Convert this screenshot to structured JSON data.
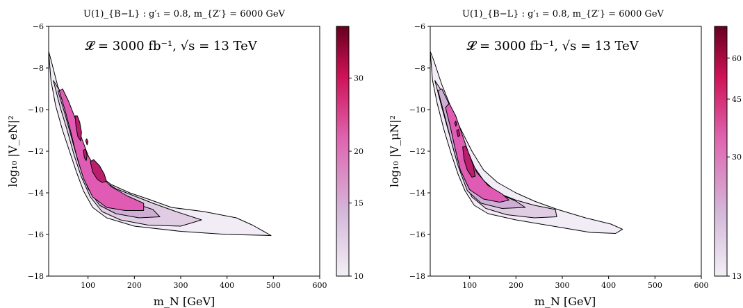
{
  "chart_data": [
    {
      "type": "contour",
      "title": "U(1)_{B−L} : g′₁ = 0.8, m_{Z′} = 6000 GeV",
      "annotation": "𝓛 = 3000 fb⁻¹, √s = 13 TeV",
      "xlabel": "m_N [GeV]",
      "ylabel": "log₁₀ |V_eN|²",
      "xlim": [
        15,
        600
      ],
      "ylim": [
        -18,
        -6
      ],
      "x_ticks": [
        "100",
        "200",
        "300",
        "400",
        "500",
        "600"
      ],
      "y_ticks": [
        "−18",
        "−16",
        "−14",
        "−12",
        "−10",
        "−8",
        "−6"
      ],
      "colorbar": {
        "scale": "log",
        "range": [
          10,
          40
        ],
        "ticks": [
          "10",
          "15",
          "20",
          "30"
        ],
        "colors": [
          "#f3eff6",
          "#d4b9da",
          "#df65b0",
          "#ce1256",
          "#67001f"
        ]
      },
      "contour_levels": [
        {
          "level": 10,
          "fill": "#f1ecf5",
          "points": [
            [
              15,
              -7.2
            ],
            [
              20,
              -8.6
            ],
            [
              30,
              -9.8
            ],
            [
              45,
              -11.0
            ],
            [
              60,
              -12.0
            ],
            [
              75,
              -13.0
            ],
            [
              90,
              -13.9
            ],
            [
              110,
              -14.7
            ],
            [
              140,
              -15.2
            ],
            [
              200,
              -15.6
            ],
            [
              300,
              -15.85
            ],
            [
              400,
              -16.0
            ],
            [
              495,
              -16.05
            ],
            [
              455,
              -15.55
            ],
            [
              420,
              -15.2
            ],
            [
              350,
              -14.9
            ],
            [
              280,
              -14.7
            ],
            [
              230,
              -14.3
            ],
            [
              190,
              -14.0
            ],
            [
              150,
              -13.6
            ],
            [
              120,
              -13.1
            ],
            [
              95,
              -12.2
            ],
            [
              75,
              -11.1
            ],
            [
              55,
              -9.9
            ],
            [
              35,
              -8.9
            ],
            [
              20,
              -7.6
            ]
          ]
        },
        {
          "level": 13,
          "fill": "#e0cde4",
          "points": [
            [
              25,
              -8.6
            ],
            [
              40,
              -9.9
            ],
            [
              55,
              -11.0
            ],
            [
              70,
              -12.2
            ],
            [
              85,
              -13.2
            ],
            [
              105,
              -14.2
            ],
            [
              130,
              -14.9
            ],
            [
              170,
              -15.3
            ],
            [
              230,
              -15.55
            ],
            [
              300,
              -15.6
            ],
            [
              345,
              -15.3
            ],
            [
              290,
              -14.9
            ],
            [
              240,
              -14.5
            ],
            [
              200,
              -14.15
            ],
            [
              160,
              -13.8
            ],
            [
              125,
              -13.3
            ],
            [
              100,
              -12.5
            ],
            [
              80,
              -11.5
            ],
            [
              65,
              -10.5
            ],
            [
              45,
              -9.3
            ]
          ]
        },
        {
          "level": 16,
          "fill": "#cfaed6",
          "points": [
            [
              35,
              -9.1
            ],
            [
              50,
              -10.2
            ],
            [
              65,
              -11.4
            ],
            [
              80,
              -12.6
            ],
            [
              100,
              -13.8
            ],
            [
              125,
              -14.6
            ],
            [
              160,
              -15.0
            ],
            [
              210,
              -15.2
            ],
            [
              255,
              -15.15
            ],
            [
              240,
              -14.8
            ],
            [
              200,
              -14.5
            ],
            [
              160,
              -14.1
            ],
            [
              125,
              -13.6
            ],
            [
              100,
              -12.8
            ],
            [
              85,
              -11.9
            ],
            [
              70,
              -11.0
            ],
            [
              55,
              -9.9
            ],
            [
              42,
              -9.1
            ]
          ]
        },
        {
          "level": 20,
          "fill": "#df5bb4",
          "points": [
            [
              38,
              -9.1
            ],
            [
              50,
              -10.0
            ],
            [
              62,
              -11.0
            ],
            [
              75,
              -12.2
            ],
            [
              90,
              -13.3
            ],
            [
              110,
              -14.2
            ],
            [
              140,
              -14.7
            ],
            [
              180,
              -14.85
            ],
            [
              220,
              -14.85
            ],
            [
              220,
              -14.5
            ],
            [
              185,
              -14.15
            ],
            [
              150,
              -13.7
            ],
            [
              120,
              -13.0
            ],
            [
              100,
              -12.2
            ],
            [
              85,
              -11.3
            ],
            [
              72,
              -10.4
            ],
            [
              58,
              -9.6
            ],
            [
              45,
              -9.0
            ]
          ]
        },
        {
          "level": 30,
          "fill": "#b91f6c",
          "points": [
            [
              105,
              -12.5
            ],
            [
              110,
              -13.0
            ],
            [
              120,
              -13.35
            ],
            [
              130,
              -13.5
            ],
            [
              140,
              -13.45
            ],
            [
              135,
              -13.1
            ],
            [
              125,
              -12.7
            ],
            [
              112,
              -12.4
            ]
          ]
        },
        {
          "level": 30,
          "fill": "#b91f6c",
          "points": [
            [
              72,
              -10.3
            ],
            [
              74,
              -10.8
            ],
            [
              78,
              -11.3
            ],
            [
              84,
              -11.5
            ],
            [
              86,
              -11.1
            ],
            [
              82,
              -10.6
            ],
            [
              77,
              -10.3
            ]
          ]
        },
        {
          "level": 30,
          "fill": "#b91f6c",
          "points": [
            [
              90,
              -11.95
            ],
            [
              92,
              -12.3
            ],
            [
              96,
              -12.45
            ],
            [
              98,
              -12.2
            ],
            [
              95,
              -11.9
            ]
          ]
        },
        {
          "level": 30,
          "fill": "#b91f6c",
          "points": [
            [
              95,
              -11.5
            ],
            [
              98,
              -11.7
            ],
            [
              100,
              -11.55
            ],
            [
              97,
              -11.4
            ]
          ]
        }
      ]
    },
    {
      "type": "contour",
      "title": "U(1)_{B−L} : g′₁ = 0.8, m_{Z′} = 6000 GeV",
      "annotation": "𝓛 = 3000 fb⁻¹, √s = 13 TeV",
      "xlabel": "m_N [GeV]",
      "ylabel": "log₁₀ |V_μN|²",
      "xlim": [
        15,
        600
      ],
      "ylim": [
        -18,
        -6
      ],
      "x_ticks": [
        "100",
        "200",
        "300",
        "400",
        "500",
        "600"
      ],
      "y_ticks": [
        "−18",
        "−16",
        "−14",
        "−12",
        "−10",
        "−8",
        "−6"
      ],
      "colorbar": {
        "scale": "log",
        "range": [
          13,
          75
        ],
        "ticks": [
          "13",
          "30",
          "45",
          "60"
        ],
        "colors": [
          "#f3eff6",
          "#d4b9da",
          "#df65b0",
          "#ce1256",
          "#67001f"
        ]
      },
      "contour_levels": [
        {
          "level": 13,
          "fill": "#f1ecf5",
          "points": [
            [
              15,
              -7.2
            ],
            [
              20,
              -8.6
            ],
            [
              30,
              -9.7
            ],
            [
              45,
              -11.0
            ],
            [
              60,
              -12.1
            ],
            [
              75,
              -13.1
            ],
            [
              90,
              -13.9
            ],
            [
              110,
              -14.6
            ],
            [
              140,
              -15.0
            ],
            [
              200,
              -15.3
            ],
            [
              280,
              -15.6
            ],
            [
              360,
              -15.9
            ],
            [
              415,
              -15.95
            ],
            [
              430,
              -15.75
            ],
            [
              405,
              -15.5
            ],
            [
              350,
              -15.2
            ],
            [
              290,
              -14.8
            ],
            [
              240,
              -14.4
            ],
            [
              200,
              -14.0
            ],
            [
              160,
              -13.5
            ],
            [
              130,
              -12.9
            ],
            [
              105,
              -12.0
            ],
            [
              80,
              -10.9
            ],
            [
              60,
              -9.9
            ],
            [
              40,
              -8.8
            ],
            [
              22,
              -7.6
            ]
          ]
        },
        {
          "level": 25,
          "fill": "#e0cde4",
          "points": [
            [
              25,
              -8.6
            ],
            [
              40,
              -9.9
            ],
            [
              55,
              -11.1
            ],
            [
              70,
              -12.3
            ],
            [
              85,
              -13.3
            ],
            [
              105,
              -14.2
            ],
            [
              135,
              -14.75
            ],
            [
              180,
              -15.05
            ],
            [
              240,
              -15.2
            ],
            [
              288,
              -15.15
            ],
            [
              285,
              -14.8
            ],
            [
              240,
              -14.6
            ],
            [
              200,
              -14.35
            ],
            [
              160,
              -14.0
            ],
            [
              130,
              -13.5
            ],
            [
              105,
              -12.7
            ],
            [
              85,
              -11.6
            ],
            [
              68,
              -10.5
            ],
            [
              48,
              -9.4
            ]
          ]
        },
        {
          "level": 30,
          "fill": "#cfaed6",
          "points": [
            [
              32,
              -9.1
            ],
            [
              45,
              -10.2
            ],
            [
              60,
              -11.5
            ],
            [
              75,
              -12.7
            ],
            [
              95,
              -13.9
            ],
            [
              125,
              -14.5
            ],
            [
              170,
              -14.75
            ],
            [
              220,
              -14.7
            ],
            [
              200,
              -14.4
            ],
            [
              160,
              -14.0
            ],
            [
              130,
              -13.4
            ],
            [
              105,
              -12.6
            ],
            [
              88,
              -11.7
            ],
            [
              72,
              -10.7
            ],
            [
              55,
              -9.7
            ],
            [
              40,
              -9.0
            ]
          ]
        },
        {
          "level": 35,
          "fill": "#df5bb4",
          "points": [
            [
              48,
              -9.9
            ],
            [
              58,
              -10.8
            ],
            [
              68,
              -11.8
            ],
            [
              80,
              -12.9
            ],
            [
              100,
              -13.85
            ],
            [
              130,
              -14.3
            ],
            [
              165,
              -14.45
            ],
            [
              185,
              -14.35
            ],
            [
              170,
              -14.05
            ],
            [
              140,
              -13.65
            ],
            [
              115,
              -13.0
            ],
            [
              98,
              -12.1
            ],
            [
              84,
              -11.2
            ],
            [
              70,
              -10.3
            ],
            [
              56,
              -9.7
            ]
          ]
        },
        {
          "level": 50,
          "fill": "#b91f6c",
          "points": [
            [
              85,
              -11.8
            ],
            [
              88,
              -12.4
            ],
            [
              95,
              -12.9
            ],
            [
              105,
              -13.25
            ],
            [
              112,
              -13.2
            ],
            [
              108,
              -12.7
            ],
            [
              100,
              -12.2
            ],
            [
              92,
              -11.75
            ]
          ]
        },
        {
          "level": 50,
          "fill": "#b91f6c",
          "points": [
            [
              72,
              -11.0
            ],
            [
              75,
              -11.3
            ],
            [
              79,
              -11.25
            ],
            [
              76,
              -10.95
            ]
          ]
        },
        {
          "level": 50,
          "fill": "#b91f6c",
          "points": [
            [
              68,
              -10.65
            ],
            [
              70,
              -10.8
            ],
            [
              72,
              -10.7
            ],
            [
              70,
              -10.55
            ]
          ]
        }
      ]
    }
  ]
}
